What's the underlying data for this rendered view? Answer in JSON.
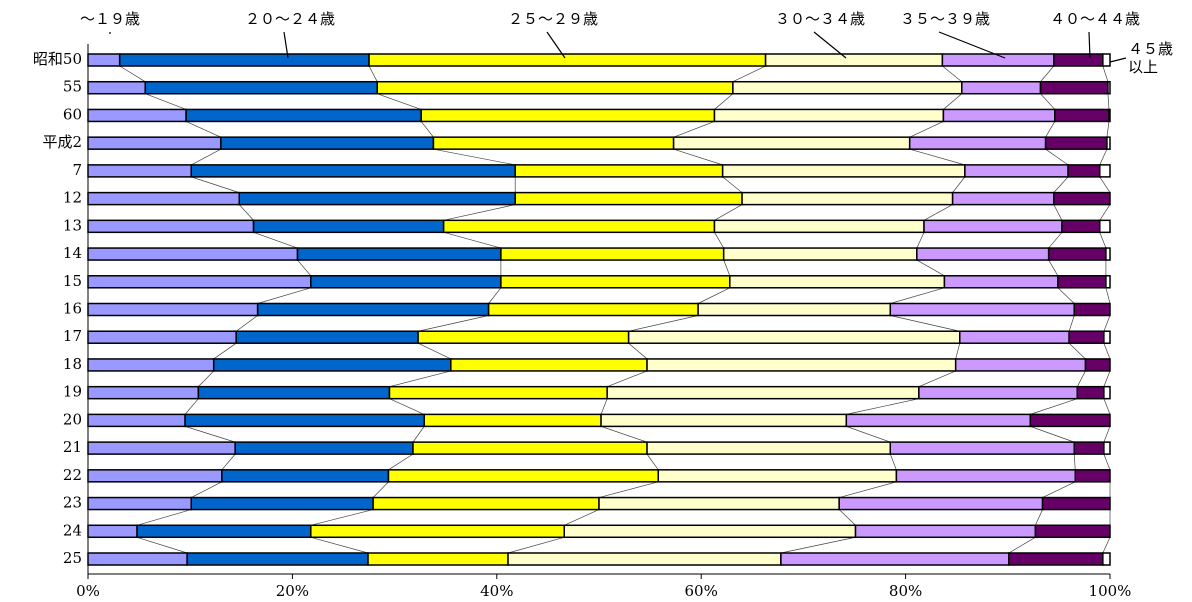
{
  "chart_data": {
    "type": "stacked-bar-horizontal",
    "categories": [
      "昭和50",
      "55",
      "60",
      "平成2",
      "7",
      "12",
      "13",
      "14",
      "15",
      "16",
      "17",
      "18",
      "19",
      "20",
      "21",
      "22",
      "23",
      "24",
      "25"
    ],
    "series": [
      {
        "name": "～１９歳",
        "color": "#9999ff",
        "values": [
          3.1,
          5.6,
          9.6,
          13.0,
          10.1,
          14.8,
          16.2,
          20.5,
          21.8,
          16.6,
          14.5,
          12.3,
          10.8,
          9.5,
          14.4,
          13.1,
          10.1,
          4.8,
          9.7
        ]
      },
      {
        "name": "２０～２４歳",
        "color": "#0066cc",
        "values": [
          24.4,
          22.7,
          23.0,
          20.8,
          31.7,
          27.0,
          18.6,
          19.9,
          18.6,
          22.6,
          17.8,
          23.2,
          18.7,
          23.4,
          17.4,
          16.3,
          17.8,
          17.0,
          17.7
        ]
      },
      {
        "name": "２５～２９歳",
        "color": "#ffff00",
        "values": [
          38.8,
          34.8,
          28.7,
          23.5,
          20.3,
          22.2,
          26.5,
          21.8,
          22.4,
          20.5,
          20.6,
          19.2,
          21.3,
          17.3,
          22.9,
          26.4,
          22.1,
          24.8,
          13.7
        ]
      },
      {
        "name": "３０～３４歳",
        "color": "#ffffcc",
        "values": [
          17.3,
          22.4,
          22.4,
          23.1,
          23.7,
          20.6,
          20.5,
          18.9,
          21.0,
          18.8,
          32.4,
          30.2,
          30.5,
          24.0,
          23.8,
          23.3,
          23.5,
          28.5,
          26.7
        ]
      },
      {
        "name": "３５～３９歳",
        "color": "#cc99ff",
        "values": [
          10.9,
          7.7,
          10.9,
          13.3,
          10.1,
          9.9,
          13.5,
          12.9,
          11.1,
          18.0,
          10.7,
          12.7,
          15.5,
          18.0,
          18.0,
          17.5,
          19.9,
          17.6,
          22.3
        ]
      },
      {
        "name": "４０～４４歳",
        "color": "#660066",
        "values": [
          4.8,
          6.6,
          5.3,
          6.0,
          3.1,
          5.5,
          3.7,
          5.6,
          4.7,
          3.5,
          3.4,
          2.4,
          2.6,
          7.8,
          2.9,
          3.4,
          6.6,
          7.3,
          9.2
        ]
      },
      {
        "name": "４５歳以上",
        "color": "#ffffff",
        "values": [
          0.7,
          0.2,
          0.1,
          0.3,
          1.0,
          0,
          1.0,
          0.4,
          0.4,
          0,
          0.6,
          0,
          0.6,
          0,
          0.6,
          0,
          0,
          0,
          0.7
        ]
      }
    ],
    "xlim": [
      0,
      100
    ],
    "xticks": [
      {
        "value": 0,
        "label": "0%"
      },
      {
        "value": 20,
        "label": "20%"
      },
      {
        "value": 40,
        "label": "40%"
      },
      {
        "value": 60,
        "label": "60%"
      },
      {
        "value": 80,
        "label": "80%"
      },
      {
        "value": 100,
        "label": "100%"
      }
    ]
  }
}
